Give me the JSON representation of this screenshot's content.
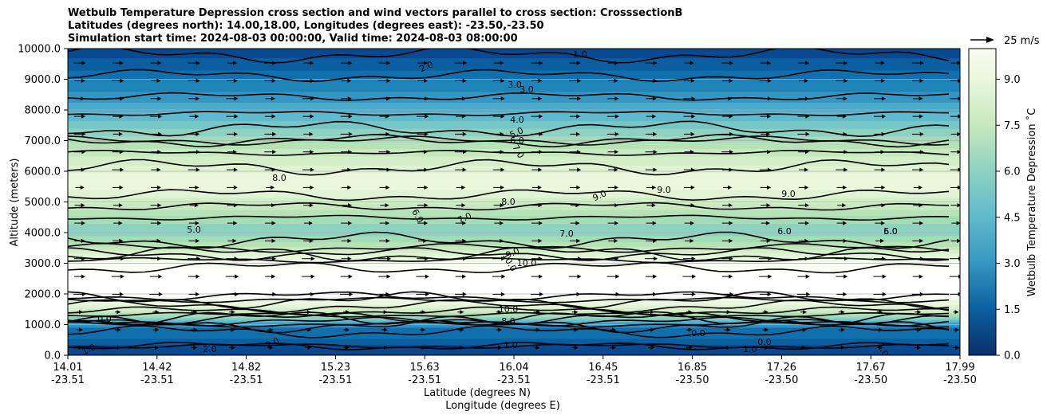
{
  "chart_data": {
    "type": "contourf",
    "title_lines": [
      "Wetbulb Temperature Depression cross section and wind vectors parallel to cross section: CrosssectionB",
      "Latitudes (degrees north): 14.00,18.00, Longitudes (degrees east): -23.50,-23.50",
      "Simulation start time: 2024-08-03 00:00:00, Valid time: 2024-08-03 08:00:00"
    ],
    "xlabel_lat": "Latitude (degrees N)",
    "xlabel_lon": "Longitude (degrees E)",
    "ylabel": "Altitude (meters)",
    "x_ticks": [
      {
        "lat": "14.01",
        "lon": "-23.51"
      },
      {
        "lat": "14.42",
        "lon": "-23.51"
      },
      {
        "lat": "14.82",
        "lon": "-23.51"
      },
      {
        "lat": "15.23",
        "lon": "-23.51"
      },
      {
        "lat": "15.63",
        "lon": "-23.51"
      },
      {
        "lat": "16.04",
        "lon": "-23.51"
      },
      {
        "lat": "16.45",
        "lon": "-23.51"
      },
      {
        "lat": "16.85",
        "lon": "-23.50"
      },
      {
        "lat": "17.26",
        "lon": "-23.50"
      },
      {
        "lat": "17.67",
        "lon": "-23.50"
      },
      {
        "lat": "17.99",
        "lon": "-23.50"
      }
    ],
    "x_range": [
      14.01,
      17.99
    ],
    "y_ticks": [
      "0.0",
      "1000.0",
      "2000.0",
      "3000.0",
      "4000.0",
      "5000.0",
      "6000.0",
      "7000.0",
      "8000.0",
      "9000.0",
      "10000.0"
    ],
    "y_range": [
      0,
      10000
    ],
    "colorbar": {
      "label": "Wetbulb Temperature Depression ˚C",
      "ticks": [
        "0.0",
        "1.5",
        "3.0",
        "4.5",
        "6.0",
        "7.5",
        "9.0"
      ],
      "range": [
        0,
        10
      ],
      "levels": 20
    },
    "quiver_key": "25 m/s",
    "profile": {
      "altitude_m": [
        0,
        300,
        500,
        900,
        1000,
        1200,
        1500,
        1800,
        2000,
        2300,
        2600,
        2800,
        3000,
        3300,
        3600,
        4000,
        4300,
        4600,
        5000,
        5300,
        5600,
        6000,
        6300,
        6700,
        7000,
        7300,
        7600,
        8000,
        8300,
        8700,
        9000,
        9300,
        9600,
        10000
      ],
      "depression_c": [
        0.5,
        1.0,
        1.6,
        2.2,
        3.0,
        5.0,
        7.5,
        9.0,
        10.5,
        10.5,
        10.5,
        10.2,
        9.5,
        8.0,
        6.5,
        5.2,
        5.5,
        6.3,
        7.4,
        8.2,
        8.6,
        8.3,
        7.6,
        6.8,
        6.0,
        5.2,
        4.5,
        3.8,
        3.2,
        2.6,
        2.2,
        1.7,
        1.2,
        0.8
      ]
    },
    "contour_labels": [
      "2.0",
      "1.0",
      "3.0",
      "3.0",
      "4.0",
      "5.0",
      "6.0",
      "7.0",
      "8.0",
      "8.0",
      "9.0",
      "9.0",
      "9.0",
      "5.0",
      "6.0",
      "7.0",
      "7.0",
      "6.0",
      "6.0",
      "5.0",
      "9.0",
      "10.0",
      "10.0",
      "10.0",
      "8.0",
      "1.0",
      "0.0",
      "0.0",
      "1.0",
      "2.0",
      "2.0",
      "0.0",
      "1.0",
      "1.0"
    ],
    "colormap": [
      "#08306b",
      "#084a91",
      "#0a5fa0",
      "#1070ad",
      "#1f84b8",
      "#3597c2",
      "#4aaac9",
      "#5fbacd",
      "#75c7c8",
      "#8dd2c1",
      "#a3dcb7",
      "#b6e3b6",
      "#c6e9bf",
      "#d4eec8",
      "#e0f3d3",
      "#eaf7dc",
      "#f1fae6",
      "#f7fcf0"
    ],
    "line_color": "#000000"
  }
}
